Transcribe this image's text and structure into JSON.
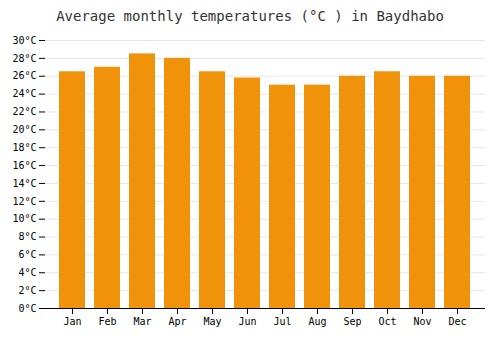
{
  "chart_data": {
    "type": "bar",
    "title": "Average monthly temperatures (°C ) in Baydhabo",
    "categories": [
      "Jan",
      "Feb",
      "Mar",
      "Apr",
      "May",
      "Jun",
      "Jul",
      "Aug",
      "Sep",
      "Oct",
      "Nov",
      "Dec"
    ],
    "values": [
      26.5,
      27.0,
      28.5,
      28.0,
      26.5,
      25.8,
      25.0,
      25.0,
      26.0,
      26.5,
      26.0,
      26.0
    ],
    "color": "#F0920A",
    "ylim": [
      0,
      30
    ],
    "yticks": [
      {
        "value": 0,
        "label": "0°C"
      },
      {
        "value": 2,
        "label": "2°C"
      },
      {
        "value": 4,
        "label": "4°C"
      },
      {
        "value": 6,
        "label": "6°C"
      },
      {
        "value": 8,
        "label": "8°C"
      },
      {
        "value": 10,
        "label": "10°C"
      },
      {
        "value": 12,
        "label": "12°C"
      },
      {
        "value": 14,
        "label": "14°C"
      },
      {
        "value": 16,
        "label": "16°C"
      },
      {
        "value": 18,
        "label": "18°C"
      },
      {
        "value": 20,
        "label": "20°C"
      },
      {
        "value": 22,
        "label": "22°C"
      },
      {
        "value": 24,
        "label": "24°C"
      },
      {
        "value": 26,
        "label": "26°C"
      },
      {
        "value": 28,
        "label": "28°C"
      },
      {
        "value": 30,
        "label": "30°C"
      }
    ],
    "grid": true
  }
}
